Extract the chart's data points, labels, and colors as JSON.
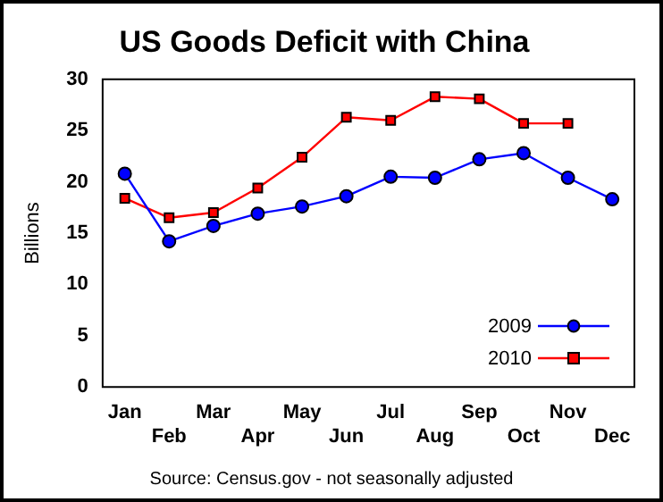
{
  "chart_data": {
    "type": "line",
    "title": "US Goods Deficit with China",
    "ylabel": "Billions",
    "categories": [
      "Jan",
      "Feb",
      "Mar",
      "Apr",
      "May",
      "Jun",
      "Jul",
      "Aug",
      "Sep",
      "Oct",
      "Nov",
      "Dec"
    ],
    "series": [
      {
        "name": "2009",
        "color": "#0000ff",
        "marker": "circle",
        "values": [
          20.8,
          14.2,
          15.7,
          16.9,
          17.6,
          18.6,
          20.5,
          20.4,
          22.2,
          22.8,
          20.4,
          18.3
        ]
      },
      {
        "name": "2010",
        "color": "#ff0000",
        "marker": "square",
        "values": [
          18.4,
          16.5,
          17.0,
          19.4,
          22.4,
          26.3,
          26.0,
          28.3,
          28.1,
          25.7,
          25.7,
          null
        ]
      }
    ],
    "ylim": [
      0,
      30
    ],
    "yticks": [
      0,
      5,
      10,
      15,
      20,
      25,
      30
    ],
    "grid": false,
    "legend": "bottom right",
    "line_style": "solid",
    "annotations": [
      "Source: Census.gov - not seasonally adjusted"
    ]
  }
}
